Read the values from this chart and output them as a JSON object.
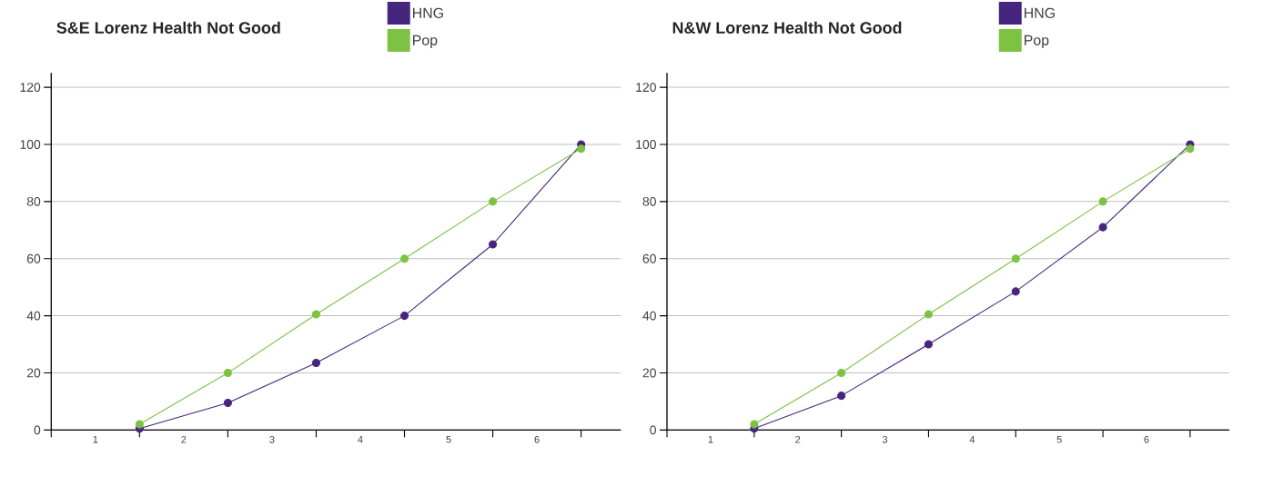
{
  "chart_data": [
    {
      "type": "line",
      "title": "S&E Lorenz Health Not Good",
      "x": [
        1,
        2,
        3,
        4,
        5,
        6
      ],
      "series": [
        {
          "name": "HNG",
          "color": "#46257f",
          "values": [
            0.5,
            9.5,
            23.5,
            40,
            65,
            100
          ]
        },
        {
          "name": "Pop",
          "color": "#7dc243",
          "values": [
            2,
            20,
            40.5,
            60,
            80,
            98.5
          ]
        }
      ],
      "xlim": [
        0,
        6.45
      ],
      "xticks": [
        {
          "value": 0,
          "label": null
        },
        {
          "value": 0.5,
          "label": "1"
        },
        {
          "value": 1,
          "label": null
        },
        {
          "value": 1.5,
          "label": "2"
        },
        {
          "value": 2,
          "label": null
        },
        {
          "value": 2.5,
          "label": "3"
        },
        {
          "value": 3,
          "label": null
        },
        {
          "value": 3.5,
          "label": "4"
        },
        {
          "value": 4,
          "label": null
        },
        {
          "value": 4.5,
          "label": "5"
        },
        {
          "value": 5,
          "label": null
        },
        {
          "value": 5.5,
          "label": "6"
        },
        {
          "value": 6,
          "label": null
        }
      ],
      "ylim": [
        0,
        125
      ],
      "yticks": [
        0,
        20,
        40,
        60,
        80,
        100,
        120
      ],
      "grid": "y",
      "legend": "top",
      "marker": "circle"
    },
    {
      "type": "line",
      "title": "N&W Lorenz Health Not Good",
      "x": [
        1,
        2,
        3,
        4,
        5,
        6
      ],
      "series": [
        {
          "name": "HNG",
          "color": "#46257f",
          "values": [
            0.5,
            12,
            30,
            48.5,
            71,
            100
          ]
        },
        {
          "name": "Pop",
          "color": "#7dc243",
          "values": [
            2,
            20,
            40.5,
            60,
            80,
            98.5
          ]
        }
      ],
      "xlim": [
        0,
        6.45
      ],
      "xticks": [
        {
          "value": 0,
          "label": null
        },
        {
          "value": 0.5,
          "label": "1"
        },
        {
          "value": 1,
          "label": null
        },
        {
          "value": 1.5,
          "label": "2"
        },
        {
          "value": 2,
          "label": null
        },
        {
          "value": 2.5,
          "label": "3"
        },
        {
          "value": 3,
          "label": null
        },
        {
          "value": 3.5,
          "label": "4"
        },
        {
          "value": 4,
          "label": null
        },
        {
          "value": 4.5,
          "label": "5"
        },
        {
          "value": 5,
          "label": null
        },
        {
          "value": 5.5,
          "label": "6"
        },
        {
          "value": 6,
          "label": null
        }
      ],
      "ylim": [
        0,
        125
      ],
      "yticks": [
        0,
        20,
        40,
        60,
        80,
        100,
        120
      ],
      "grid": "y",
      "legend": "top",
      "marker": "circle"
    }
  ]
}
